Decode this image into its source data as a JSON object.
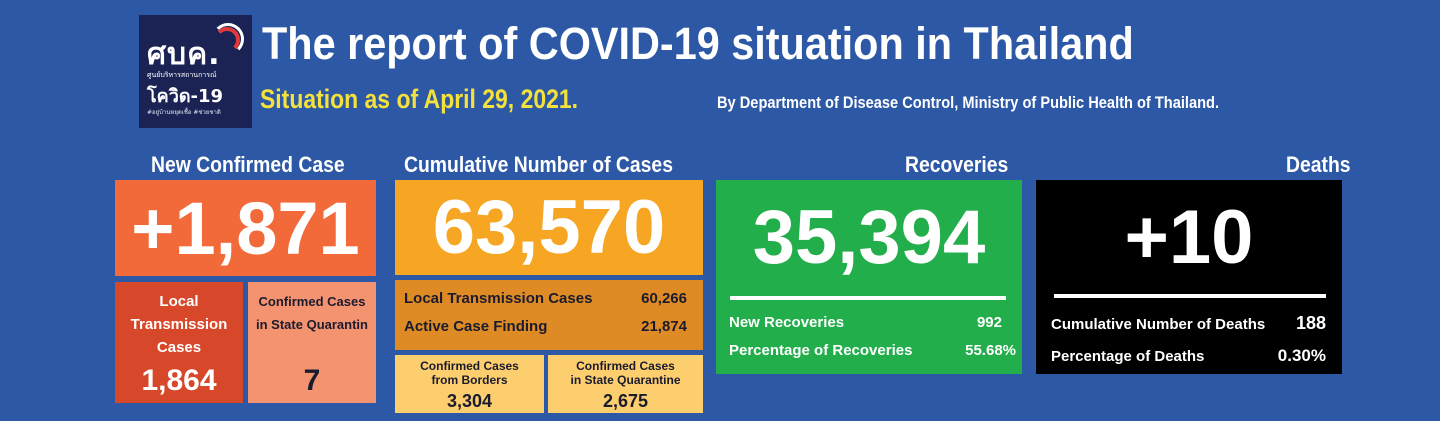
{
  "header": {
    "logo_text": "ศบค.",
    "logo_subtext": "ศูนย์บริหารสถานการณ์",
    "logo_covid": "โควิด-19",
    "logo_tagline": "#อยู่บ้านหยุดเชื้อ #ช่วยชาติ",
    "title": "The report of COVID-19 situation in Thailand",
    "situation": "Situation as of April 29, 2021.",
    "byline": "By Department of Disease Control, Ministry of Public Health of Thailand."
  },
  "new_confirmed": {
    "title": "New Confirmed Case",
    "value": "+1,871",
    "local_label_1": "Local",
    "local_label_2": "Transmission",
    "local_label_3": "Cases",
    "local_value": "1,864",
    "quarantine_label_1": "Confirmed Cases",
    "quarantine_label_2": "in State Quarantin",
    "quarantine_value": "7",
    "color": "#f26a3a"
  },
  "cumulative": {
    "title": "Cumulative Number of Cases",
    "value": "63,570",
    "local_label": "Local Transmission Cases",
    "local_value": "60,266",
    "active_label": "Active Case Finding",
    "active_value": "21,874",
    "borders_label_1": "Confirmed Cases",
    "borders_label_2": "from Borders",
    "borders_value": "3,304",
    "sq_label_1": "Confirmed Cases",
    "sq_label_2": "in State Quarantine",
    "sq_value": "2,675",
    "color": "#f6a623"
  },
  "recoveries": {
    "title": "Recoveries",
    "value": "35,394",
    "new_label": "New Recoveries",
    "new_value": "992",
    "pct_label": "Percentage of Recoveries",
    "pct_value": "55.68%",
    "color": "#22ae4b"
  },
  "deaths": {
    "title": "Deaths",
    "value": "+10",
    "cum_label": "Cumulative Number of Deaths",
    "cum_value": "188",
    "pct_label": "Percentage of Deaths",
    "pct_value": "0.30%",
    "color": "#000000"
  }
}
